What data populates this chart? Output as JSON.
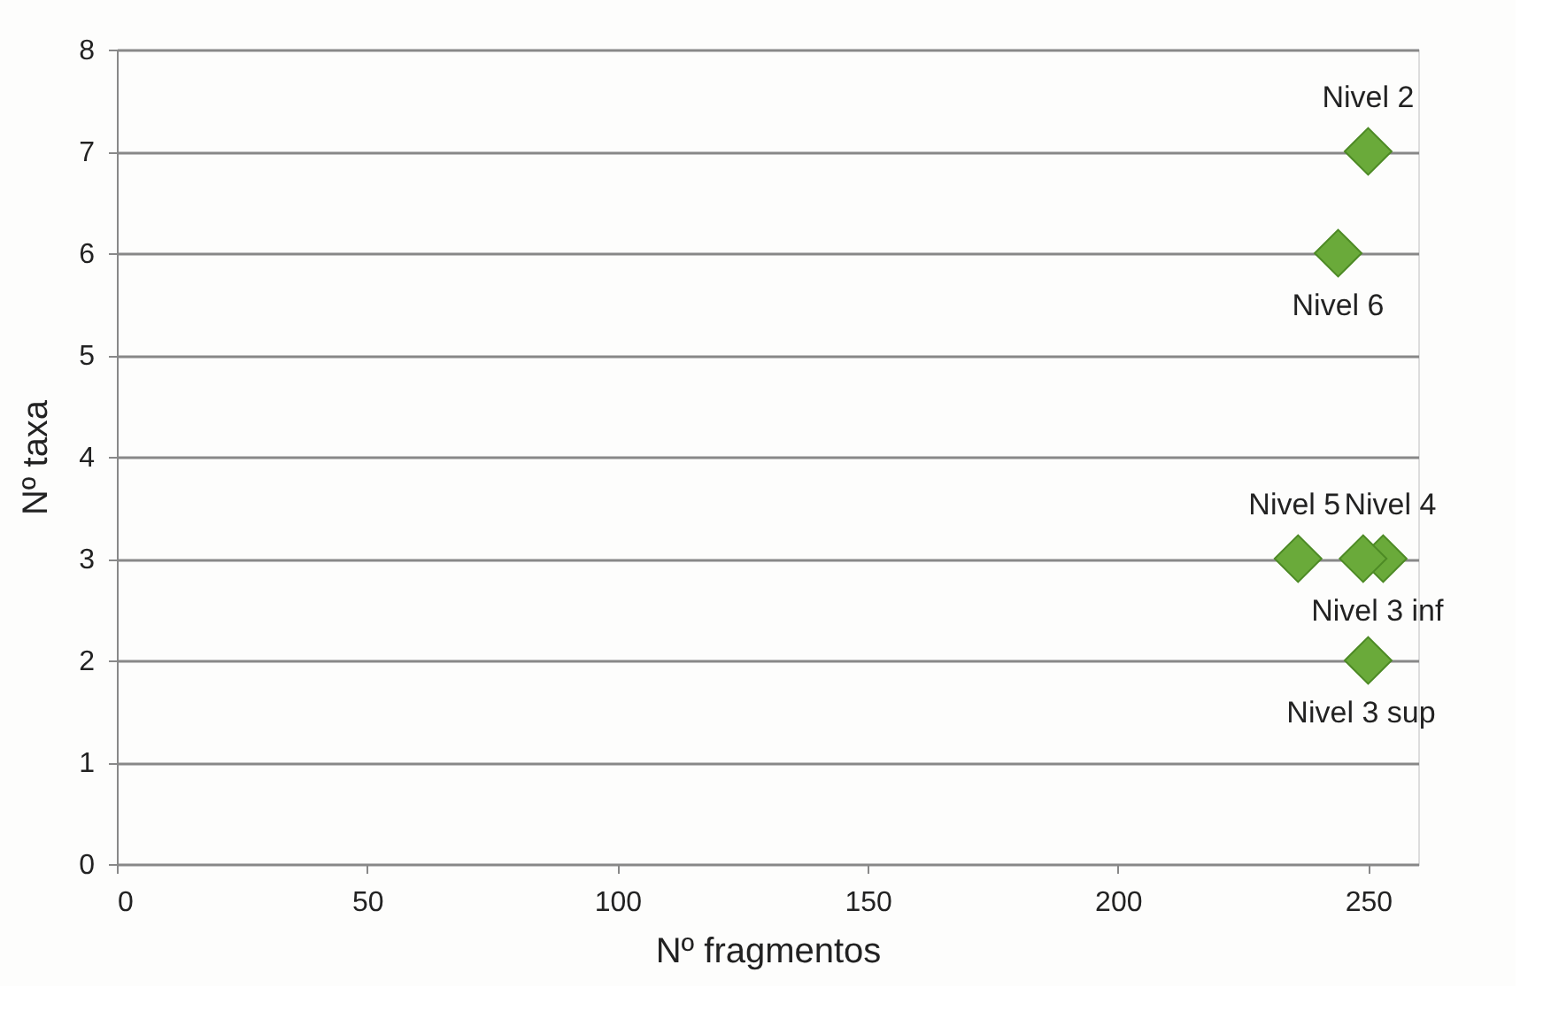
{
  "chart_data": {
    "type": "scatter",
    "xlabel": "Nº fragmentos",
    "ylabel": "Nº taxa",
    "x": [
      250,
      244,
      236,
      253,
      249,
      250
    ],
    "series": [
      {
        "color": "#6aaa3a",
        "values": [
          7,
          6,
          3,
          3,
          3,
          2
        ]
      }
    ],
    "annotations": [
      {
        "text": "Nivel 2",
        "x": 250,
        "y": 7
      },
      {
        "text": "Nivel 6",
        "x": 244,
        "y": 6
      },
      {
        "text": "Nivel 5",
        "x": 236,
        "y": 3
      },
      {
        "text": "Nivel 4",
        "x": 253,
        "y": 3
      },
      {
        "text": "Nivel 3 inf",
        "x": 249,
        "y": 3
      },
      {
        "text": "Nivel 3 sup",
        "x": 250,
        "y": 2
      }
    ],
    "xlim": [
      0,
      260
    ],
    "xticks": [
      0,
      50,
      100,
      150,
      200,
      250
    ],
    "ylim": [
      0,
      8
    ],
    "yticks": [
      0,
      1,
      2,
      3,
      4,
      5,
      6,
      7,
      8
    ],
    "grid": "y",
    "marker": "diamond"
  }
}
